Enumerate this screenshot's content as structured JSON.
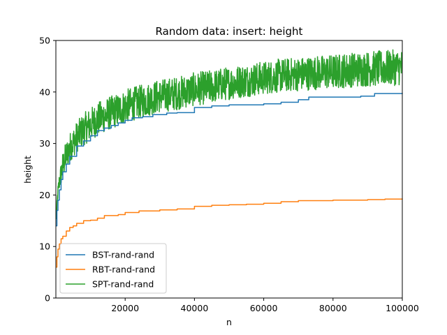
{
  "chart_data": {
    "type": "line",
    "title": "Random data: insert: height",
    "xlabel": "n",
    "ylabel": "height",
    "xlim": [
      0,
      100000
    ],
    "ylim": [
      0,
      50
    ],
    "xticks": [
      20000,
      40000,
      60000,
      80000,
      100000
    ],
    "yticks": [
      0,
      10,
      20,
      30,
      40,
      50
    ],
    "grid": false,
    "legend_position": "lower-left",
    "series": [
      {
        "name": "BST-rand-rand",
        "color": "#1f77b4",
        "points": [
          [
            100,
            14
          ],
          [
            300,
            17
          ],
          [
            600,
            19
          ],
          [
            1000,
            21
          ],
          [
            1500,
            23
          ],
          [
            2000,
            24.5
          ],
          [
            3000,
            26
          ],
          [
            4000,
            27.5
          ],
          [
            6000,
            29.5
          ],
          [
            8000,
            30.5
          ],
          [
            10000,
            31.5
          ],
          [
            12000,
            32.5
          ],
          [
            14000,
            33
          ],
          [
            16000,
            33.5
          ],
          [
            18000,
            34
          ],
          [
            20000,
            34.5
          ],
          [
            22000,
            35
          ],
          [
            25000,
            35.2
          ],
          [
            28000,
            35.6
          ],
          [
            32000,
            35.9
          ],
          [
            35000,
            36
          ],
          [
            40000,
            37
          ],
          [
            45000,
            37.3
          ],
          [
            50000,
            37.5
          ],
          [
            60000,
            37.7
          ],
          [
            65000,
            38
          ],
          [
            70000,
            38.5
          ],
          [
            73000,
            39
          ],
          [
            80000,
            39
          ],
          [
            88000,
            39.2
          ],
          [
            92000,
            39.7
          ],
          [
            100000,
            39.8
          ]
        ]
      },
      {
        "name": "RBT-rand-rand",
        "color": "#ff7f0e",
        "points": [
          [
            100,
            6
          ],
          [
            300,
            8
          ],
          [
            600,
            9.5
          ],
          [
            1000,
            10.5
          ],
          [
            1500,
            11.5
          ],
          [
            2000,
            12
          ],
          [
            3000,
            13
          ],
          [
            4000,
            13.7
          ],
          [
            5000,
            14
          ],
          [
            6000,
            14.5
          ],
          [
            8000,
            15
          ],
          [
            10000,
            15.1
          ],
          [
            12000,
            15.5
          ],
          [
            14000,
            16
          ],
          [
            18000,
            16.2
          ],
          [
            20000,
            16.6
          ],
          [
            24000,
            16.9
          ],
          [
            30000,
            17.1
          ],
          [
            35000,
            17.3
          ],
          [
            40000,
            17.8
          ],
          [
            45000,
            18
          ],
          [
            50000,
            18.1
          ],
          [
            55000,
            18.2
          ],
          [
            60000,
            18.4
          ],
          [
            65000,
            18.7
          ],
          [
            70000,
            18.9
          ],
          [
            80000,
            19
          ],
          [
            90000,
            19.1
          ],
          [
            95000,
            19.2
          ],
          [
            100000,
            19.3
          ]
        ]
      },
      {
        "name": "SPT-rand-rand",
        "color": "#2ca02c",
        "points": [
          [
            100,
            15
          ],
          [
            500,
            20
          ],
          [
            1000,
            22.5
          ],
          [
            2000,
            25.5
          ],
          [
            3000,
            27.5
          ],
          [
            4000,
            29
          ],
          [
            5000,
            30
          ],
          [
            6000,
            31
          ],
          [
            8000,
            32.5
          ],
          [
            10000,
            33.5
          ],
          [
            12000,
            34.5
          ],
          [
            15000,
            35.5
          ],
          [
            18000,
            36.3
          ],
          [
            20000,
            37
          ],
          [
            25000,
            38
          ],
          [
            30000,
            39
          ],
          [
            35000,
            39.5
          ],
          [
            40000,
            40.3
          ],
          [
            45000,
            40.8
          ],
          [
            50000,
            41.5
          ],
          [
            55000,
            42
          ],
          [
            60000,
            42.5
          ],
          [
            65000,
            43
          ],
          [
            70000,
            43.3
          ],
          [
            75000,
            43.6
          ],
          [
            80000,
            43.8
          ],
          [
            85000,
            44.2
          ],
          [
            90000,
            44.4
          ],
          [
            95000,
            44.6
          ],
          [
            100000,
            44.8
          ]
        ],
        "spread_lower": [
          [
            100,
            1
          ],
          [
            2000,
            2.5
          ],
          [
            10000,
            3
          ],
          [
            30000,
            3
          ],
          [
            60000,
            3
          ],
          [
            100000,
            3.5
          ]
        ],
        "spread_upper": [
          [
            100,
            1
          ],
          [
            2000,
            3
          ],
          [
            10000,
            3.5
          ],
          [
            30000,
            3.5
          ],
          [
            60000,
            3.5
          ],
          [
            100000,
            3.5
          ]
        ]
      }
    ]
  }
}
